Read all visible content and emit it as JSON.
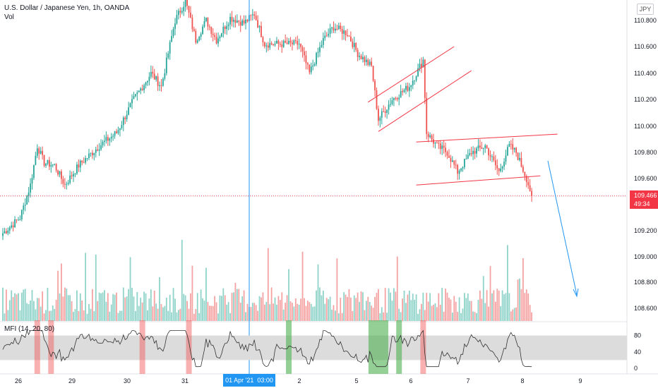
{
  "header": {
    "symbol_title": "U.S. Dollar / Japanese Yen, 1h, OANDA",
    "volume_label": "Vol",
    "currency_badge": "JPY"
  },
  "indicator": {
    "label": "MFI (14, 20, 80)",
    "levels": [
      "80",
      "40",
      "0"
    ]
  },
  "price_label": {
    "value": "109.466",
    "countdown": "49:34"
  },
  "crosshair_label": {
    "date": "01 Apr '21",
    "time": "03:00"
  },
  "chart_data": {
    "type": "candlestick",
    "title": "U.S. Dollar / Japanese Yen, 1h, OANDA",
    "y_ticks": [
      "110.800",
      "110.600",
      "110.400",
      "110.200",
      "110.000",
      "109.800",
      "109.600",
      "109.200",
      "109.000",
      "108.800",
      "108.600"
    ],
    "y_tick_values": [
      110.8,
      110.6,
      110.4,
      110.2,
      110.0,
      109.8,
      109.6,
      109.2,
      109.0,
      108.8,
      108.6
    ],
    "x_ticks": [
      "26",
      "29",
      "30",
      "31",
      "2",
      "5",
      "6",
      "7",
      "8",
      "9"
    ],
    "ylim": [
      108.56,
      110.88
    ],
    "current_price": 109.466,
    "waypoints": [
      {
        "t": 0,
        "p": 109.18
      },
      {
        "t": 10,
        "p": 109.3
      },
      {
        "t": 16,
        "p": 109.55
      },
      {
        "t": 20,
        "p": 109.85
      },
      {
        "t": 24,
        "p": 109.72
      },
      {
        "t": 30,
        "p": 109.7
      },
      {
        "t": 36,
        "p": 109.55
      },
      {
        "t": 44,
        "p": 109.7
      },
      {
        "t": 56,
        "p": 109.85
      },
      {
        "t": 66,
        "p": 109.95
      },
      {
        "t": 76,
        "p": 110.2
      },
      {
        "t": 86,
        "p": 110.4
      },
      {
        "t": 92,
        "p": 110.3
      },
      {
        "t": 100,
        "p": 110.8
      },
      {
        "t": 106,
        "p": 110.95
      },
      {
        "t": 112,
        "p": 110.65
      },
      {
        "t": 118,
        "p": 110.8
      },
      {
        "t": 124,
        "p": 110.65
      },
      {
        "t": 132,
        "p": 110.82
      },
      {
        "t": 140,
        "p": 110.78
      },
      {
        "t": 146,
        "p": 110.85
      },
      {
        "t": 152,
        "p": 110.62
      },
      {
        "t": 164,
        "p": 110.62
      },
      {
        "t": 172,
        "p": 110.62
      },
      {
        "t": 178,
        "p": 110.4
      },
      {
        "t": 186,
        "p": 110.65
      },
      {
        "t": 192,
        "p": 110.75
      },
      {
        "t": 200,
        "p": 110.7
      },
      {
        "t": 206,
        "p": 110.55
      },
      {
        "t": 214,
        "p": 110.45
      },
      {
        "t": 218,
        "p": 110.05
      },
      {
        "t": 226,
        "p": 110.2
      },
      {
        "t": 236,
        "p": 110.3
      },
      {
        "t": 244,
        "p": 110.5
      },
      {
        "t": 246,
        "p": 109.95
      },
      {
        "t": 252,
        "p": 109.85
      },
      {
        "t": 258,
        "p": 109.8
      },
      {
        "t": 264,
        "p": 109.65
      },
      {
        "t": 272,
        "p": 109.8
      },
      {
        "t": 280,
        "p": 109.85
      },
      {
        "t": 288,
        "p": 109.65
      },
      {
        "t": 294,
        "p": 109.85
      },
      {
        "t": 298,
        "p": 109.8
      },
      {
        "t": 304,
        "p": 109.6
      },
      {
        "t": 307,
        "p": 109.47
      }
    ],
    "trend_lines": [
      {
        "name": "channel-upper",
        "t1": 212,
        "p1": 110.18,
        "t2": 262,
        "p2": 110.6
      },
      {
        "name": "channel-lower",
        "t1": 218,
        "p1": 109.96,
        "t2": 272,
        "p2": 110.42
      },
      {
        "name": "range-upper",
        "t1": 240,
        "p1": 109.88,
        "t2": 322,
        "p2": 109.94
      },
      {
        "name": "range-lower",
        "t1": 240,
        "p1": 109.55,
        "t2": 312,
        "p2": 109.62
      }
    ],
    "mfi_ylim": [
      0,
      100
    ],
    "mfi_band": [
      20,
      80
    ],
    "mfi_signal_levels": [
      {
        "type": "overbought",
        "t": 20
      },
      {
        "type": "overbought",
        "t": 28
      },
      {
        "type": "overbought",
        "t": 81
      },
      {
        "type": "overbought",
        "t": 108
      },
      {
        "type": "oversold",
        "t": 166
      },
      {
        "type": "oversold",
        "t": 218
      },
      {
        "type": "oversold",
        "t": 230
      },
      {
        "type": "overbought",
        "t": 244
      }
    ],
    "colors": {
      "up": "#26a69a",
      "down": "#ef5350",
      "vol_up": "#8fd3c9",
      "vol_down": "#f4a3a2",
      "channel": "#f23645",
      "projection": "#2196f3",
      "crosshair": "#2196f3",
      "price_line": "#f23645"
    }
  }
}
